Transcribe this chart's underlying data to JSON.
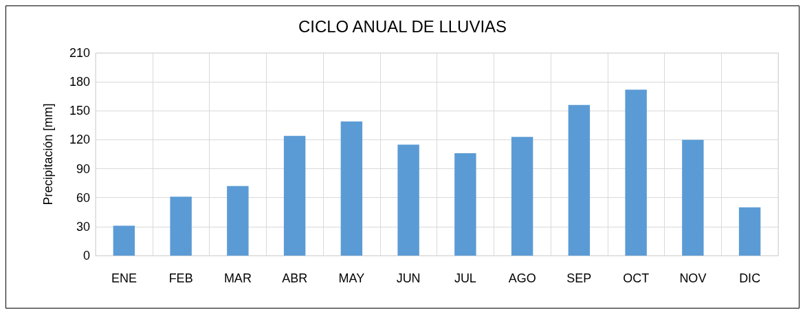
{
  "chart_data": {
    "type": "bar",
    "title": "CICLO ANUAL DE LLUVIAS",
    "ylabel": "Precipitación [mm]",
    "categories": [
      "ENE",
      "FEB",
      "MAR",
      "ABR",
      "MAY",
      "JUN",
      "JUL",
      "AGO",
      "SEP",
      "OCT",
      "NOV",
      "DIC"
    ],
    "values": [
      31,
      61,
      72,
      124,
      139,
      115,
      106,
      123,
      156,
      172,
      120,
      50
    ],
    "color": "#5b9bd5",
    "ylim": [
      0,
      210
    ],
    "yticks": [
      0,
      30,
      60,
      90,
      120,
      150,
      180,
      210
    ],
    "grid": true
  }
}
